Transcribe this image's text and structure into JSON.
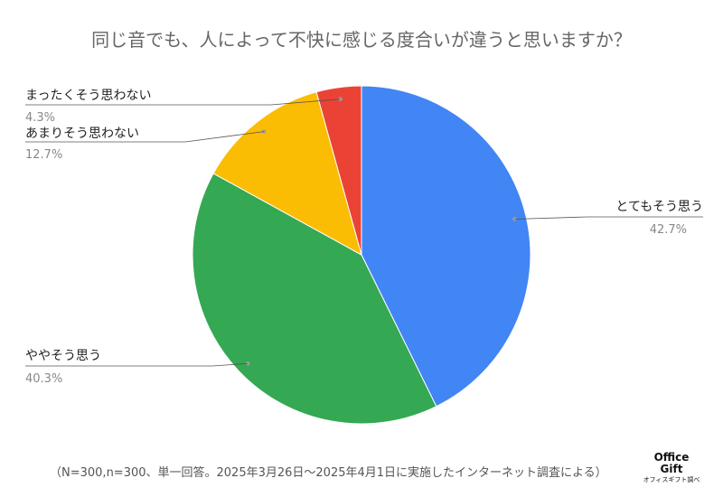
{
  "chart_data": {
    "type": "pie",
    "title": "同じ音でも、人によって不快に感じる度合いが違うと思いますか？",
    "slices": [
      {
        "label": "とてもそう思う",
        "percent_label": "42.7%",
        "value": 42.7,
        "color": "#4285F4"
      },
      {
        "label": "ややそう思う",
        "percent_label": "40.3%",
        "value": 40.3,
        "color": "#34A853"
      },
      {
        "label": "あまりそう思わない",
        "percent_label": "12.7%",
        "value": 12.7,
        "color": "#FBBC04"
      },
      {
        "label": "まったくそう思わない",
        "percent_label": "4.3%",
        "value": 4.3,
        "color": "#EA4335"
      }
    ],
    "legend": "none"
  },
  "footnote": "（N=300,n=300、単一回答。2025年3月26日～2025年4月1日に実施したインターネット調査による）",
  "logo": {
    "line1": "Office",
    "line2": "Gift",
    "line3": "オフィスギフト調べ"
  }
}
